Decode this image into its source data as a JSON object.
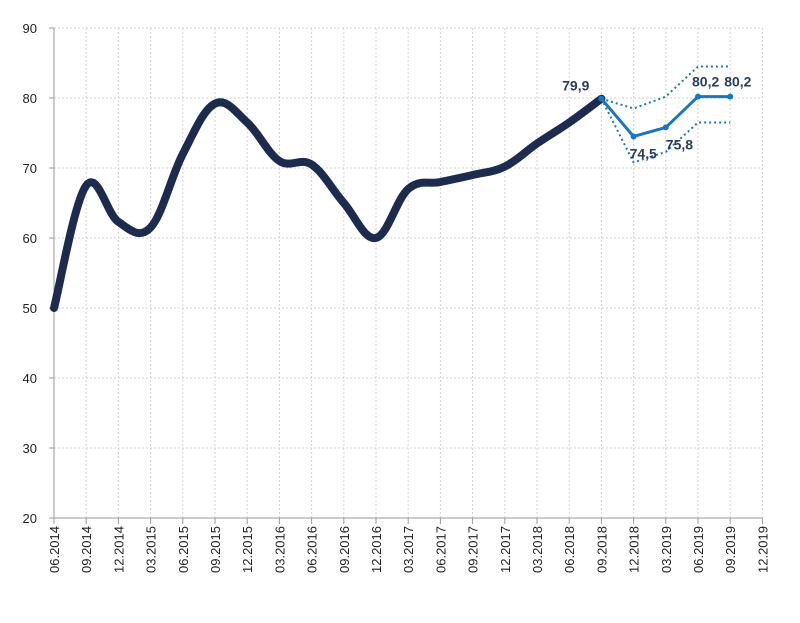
{
  "chart_data": {
    "type": "line",
    "x": [
      "06.2014",
      "09.2014",
      "12.2014",
      "03.2015",
      "06.2015",
      "09.2015",
      "12.2015",
      "03.2016",
      "06.2016",
      "09.2016",
      "12.2016",
      "03.2017",
      "06.2017",
      "09.2017",
      "12.2017",
      "03.2018",
      "06.2018",
      "09.2018",
      "12.2018",
      "03.2019",
      "06.2019",
      "09.2019",
      "12.2019"
    ],
    "ylim": [
      20,
      90
    ],
    "yticks": [
      20,
      30,
      40,
      50,
      60,
      70,
      80,
      90
    ],
    "grid": true,
    "series": [
      {
        "values": [
          50,
          67.5,
          62.3,
          61.5,
          72,
          79.2,
          76.5,
          71,
          70.5,
          65,
          60,
          67,
          68,
          69,
          70.2,
          73.5,
          76.5,
          79.9,
          null,
          null,
          null,
          null,
          null
        ],
        "color": "#1d2b4f",
        "style": "solid"
      },
      {
        "values": [
          null,
          null,
          null,
          null,
          null,
          null,
          null,
          null,
          null,
          null,
          null,
          null,
          null,
          null,
          null,
          null,
          null,
          79.9,
          74.5,
          75.8,
          80.2,
          80.2,
          null
        ],
        "color": "#1a75c2",
        "style": "solid"
      },
      {
        "values": [
          null,
          null,
          null,
          null,
          null,
          null,
          null,
          null,
          null,
          null,
          null,
          null,
          null,
          null,
          null,
          null,
          null,
          79.9,
          78.5,
          80.2,
          84.5,
          84.5,
          null
        ],
        "color": "#1a75c2",
        "style": "dotted"
      },
      {
        "values": [
          null,
          null,
          null,
          null,
          null,
          null,
          null,
          null,
          null,
          null,
          null,
          null,
          null,
          null,
          null,
          null,
          null,
          79.9,
          70.8,
          72.3,
          76.5,
          76.5,
          null
        ],
        "color": "#1a75c2",
        "style": "dotted"
      }
    ],
    "data_labels": [
      {
        "x": "09.2018",
        "y": 79.9,
        "text": "79,9",
        "position": "above-left"
      },
      {
        "x": "12.2018",
        "y": 74.5,
        "text": "74,5",
        "position": "below"
      },
      {
        "x": "03.2019",
        "y": 75.8,
        "text": "75,8",
        "position": "below-right"
      },
      {
        "x": "06.2019",
        "y": 80.2,
        "text": "80,2",
        "position": "above-right"
      },
      {
        "x": "09.2019",
        "y": 80.2,
        "text": "80,2",
        "position": "above-right"
      }
    ]
  }
}
